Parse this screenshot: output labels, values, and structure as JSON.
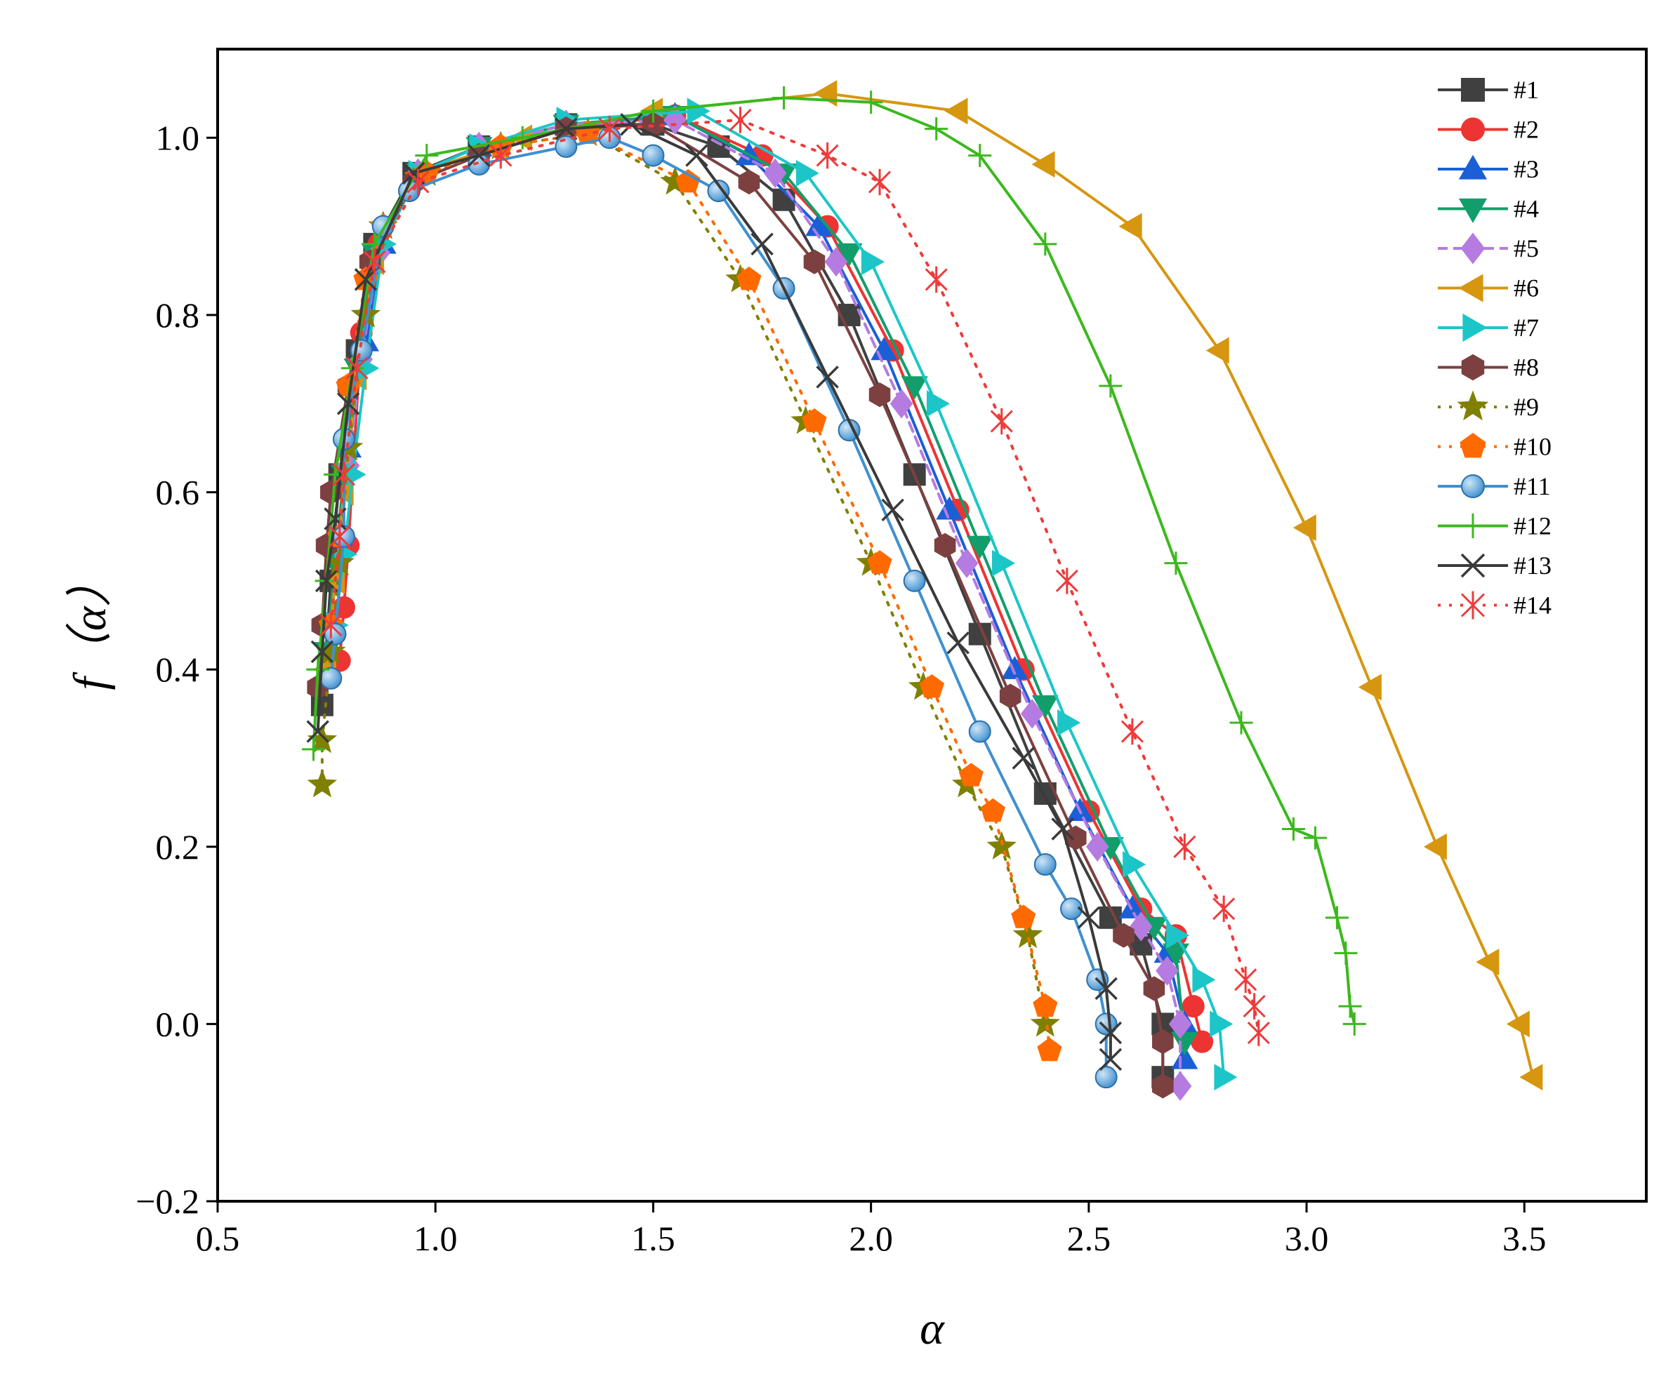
{
  "chart_data": {
    "type": "line",
    "title": "",
    "xlabel": "α",
    "ylabel": "f（α）",
    "xlim": [
      0.5,
      3.78
    ],
    "ylim": [
      -0.2,
      1.1
    ],
    "xticks": [
      0.5,
      1.0,
      1.5,
      2.0,
      2.5,
      3.0,
      3.5
    ],
    "xtick_labels": [
      "0.5",
      "1.0",
      "1.5",
      "2.0",
      "2.5",
      "3.0",
      "3.5"
    ],
    "yticks": [
      -0.2,
      0.0,
      0.2,
      0.4,
      0.6,
      0.8,
      1.0
    ],
    "ytick_labels": [
      "−0.2",
      "0.0",
      "0.2",
      "0.4",
      "0.6",
      "0.8",
      "1.0"
    ],
    "grid": false,
    "legend_position": "top-right",
    "series": [
      {
        "name": "#1",
        "color": "#404040",
        "marker": "square",
        "dash": "solid",
        "points": [
          [
            0.74,
            0.36
          ],
          [
            0.76,
            0.5
          ],
          [
            0.78,
            0.62
          ],
          [
            0.82,
            0.76
          ],
          [
            0.86,
            0.88
          ],
          [
            0.95,
            0.96
          ],
          [
            1.1,
            0.99
          ],
          [
            1.3,
            1.015
          ],
          [
            1.5,
            1.015
          ],
          [
            1.65,
            0.99
          ],
          [
            1.8,
            0.93
          ],
          [
            1.95,
            0.8
          ],
          [
            2.1,
            0.62
          ],
          [
            2.25,
            0.44
          ],
          [
            2.4,
            0.26
          ],
          [
            2.55,
            0.12
          ],
          [
            2.62,
            0.09
          ],
          [
            2.67,
            0.0
          ],
          [
            2.67,
            -0.06
          ]
        ]
      },
      {
        "name": "#2",
        "color": "#ee3333",
        "marker": "circle",
        "dash": "solid",
        "points": [
          [
            0.78,
            0.41
          ],
          [
            0.79,
            0.47
          ],
          [
            0.8,
            0.54
          ],
          [
            0.83,
            0.78
          ],
          [
            0.87,
            0.88
          ],
          [
            0.95,
            0.95
          ],
          [
            1.1,
            0.98
          ],
          [
            1.3,
            1.01
          ],
          [
            1.55,
            1.025
          ],
          [
            1.75,
            0.98
          ],
          [
            1.9,
            0.9
          ],
          [
            2.05,
            0.76
          ],
          [
            2.2,
            0.58
          ],
          [
            2.35,
            0.4
          ],
          [
            2.5,
            0.24
          ],
          [
            2.62,
            0.13
          ],
          [
            2.7,
            0.1
          ],
          [
            2.74,
            0.02
          ],
          [
            2.76,
            -0.02
          ]
        ]
      },
      {
        "name": "#3",
        "color": "#1a5fd6",
        "marker": "triangle-up",
        "dash": "solid",
        "points": [
          [
            0.76,
            0.45
          ],
          [
            0.78,
            0.55
          ],
          [
            0.8,
            0.65
          ],
          [
            0.84,
            0.77
          ],
          [
            0.88,
            0.88
          ],
          [
            0.96,
            0.96
          ],
          [
            1.1,
            0.99
          ],
          [
            1.3,
            1.015
          ],
          [
            1.55,
            1.025
          ],
          [
            1.72,
            0.98
          ],
          [
            1.88,
            0.9
          ],
          [
            2.03,
            0.76
          ],
          [
            2.18,
            0.58
          ],
          [
            2.33,
            0.4
          ],
          [
            2.48,
            0.24
          ],
          [
            2.6,
            0.13
          ],
          [
            2.68,
            0.08
          ],
          [
            2.72,
            0.0
          ],
          [
            2.72,
            -0.04
          ]
        ]
      },
      {
        "name": "#4",
        "color": "#129e6a",
        "marker": "triangle-down",
        "dash": "solid",
        "points": [
          [
            0.75,
            0.42
          ],
          [
            0.77,
            0.52
          ],
          [
            0.79,
            0.62
          ],
          [
            0.82,
            0.74
          ],
          [
            0.86,
            0.87
          ],
          [
            0.96,
            0.96
          ],
          [
            1.1,
            0.99
          ],
          [
            1.3,
            1.015
          ],
          [
            1.55,
            1.025
          ],
          [
            1.8,
            0.96
          ],
          [
            1.95,
            0.87
          ],
          [
            2.1,
            0.72
          ],
          [
            2.25,
            0.54
          ],
          [
            2.4,
            0.36
          ],
          [
            2.55,
            0.2
          ],
          [
            2.65,
            0.11
          ],
          [
            2.7,
            0.08
          ],
          [
            2.72,
            -0.02
          ]
        ]
      },
      {
        "name": "#5",
        "color": "#b57be0",
        "marker": "diamond",
        "dash": "dashed",
        "points": [
          [
            0.76,
            0.45
          ],
          [
            0.78,
            0.55
          ],
          [
            0.8,
            0.63
          ],
          [
            0.83,
            0.75
          ],
          [
            0.87,
            0.87
          ],
          [
            0.96,
            0.96
          ],
          [
            1.1,
            0.99
          ],
          [
            1.3,
            1.015
          ],
          [
            1.55,
            1.02
          ],
          [
            1.78,
            0.96
          ],
          [
            1.92,
            0.86
          ],
          [
            2.07,
            0.7
          ],
          [
            2.22,
            0.52
          ],
          [
            2.37,
            0.35
          ],
          [
            2.52,
            0.2
          ],
          [
            2.62,
            0.11
          ],
          [
            2.68,
            0.06
          ],
          [
            2.71,
            0.0
          ],
          [
            2.71,
            -0.07
          ]
        ]
      },
      {
        "name": "#6",
        "color": "#d6960f",
        "marker": "triangle-left",
        "dash": "solid",
        "points": [
          [
            0.75,
            0.4
          ],
          [
            0.77,
            0.5
          ],
          [
            0.79,
            0.6
          ],
          [
            0.82,
            0.73
          ],
          [
            0.86,
            0.86
          ],
          [
            0.96,
            0.96
          ],
          [
            1.2,
            1.0
          ],
          [
            1.5,
            1.03
          ],
          [
            1.9,
            1.05
          ],
          [
            2.2,
            1.03
          ],
          [
            2.4,
            0.97
          ],
          [
            2.6,
            0.9
          ],
          [
            2.8,
            0.76
          ],
          [
            3.0,
            0.56
          ],
          [
            3.15,
            0.38
          ],
          [
            3.3,
            0.2
          ],
          [
            3.42,
            0.07
          ],
          [
            3.49,
            0.0
          ],
          [
            3.52,
            -0.06
          ]
        ]
      },
      {
        "name": "#7",
        "color": "#1cc6c8",
        "marker": "triangle-right",
        "dash": "solid",
        "points": [
          [
            0.77,
            0.45
          ],
          [
            0.79,
            0.53
          ],
          [
            0.81,
            0.62
          ],
          [
            0.84,
            0.74
          ],
          [
            0.88,
            0.88
          ],
          [
            0.96,
            0.96
          ],
          [
            1.1,
            0.99
          ],
          [
            1.3,
            1.02
          ],
          [
            1.6,
            1.03
          ],
          [
            1.85,
            0.96
          ],
          [
            2.0,
            0.86
          ],
          [
            2.15,
            0.7
          ],
          [
            2.3,
            0.52
          ],
          [
            2.45,
            0.34
          ],
          [
            2.6,
            0.18
          ],
          [
            2.7,
            0.1
          ],
          [
            2.76,
            0.05
          ],
          [
            2.8,
            0.0
          ],
          [
            2.81,
            -0.06
          ]
        ]
      },
      {
        "name": "#8",
        "color": "#7d4040",
        "marker": "hexagon",
        "dash": "solid",
        "points": [
          [
            0.73,
            0.38
          ],
          [
            0.74,
            0.45
          ],
          [
            0.75,
            0.54
          ],
          [
            0.76,
            0.6
          ],
          [
            0.8,
            0.72
          ],
          [
            0.85,
            0.86
          ],
          [
            0.95,
            0.95
          ],
          [
            1.1,
            0.98
          ],
          [
            1.3,
            1.01
          ],
          [
            1.5,
            1.015
          ],
          [
            1.72,
            0.95
          ],
          [
            1.87,
            0.86
          ],
          [
            2.02,
            0.71
          ],
          [
            2.17,
            0.54
          ],
          [
            2.32,
            0.37
          ],
          [
            2.47,
            0.21
          ],
          [
            2.58,
            0.1
          ],
          [
            2.65,
            0.04
          ],
          [
            2.67,
            -0.02
          ],
          [
            2.67,
            -0.07
          ]
        ]
      },
      {
        "name": "#9",
        "color": "#808000",
        "marker": "star",
        "dash": "dotted",
        "points": [
          [
            0.74,
            0.27
          ],
          [
            0.74,
            0.32
          ],
          [
            0.76,
            0.42
          ],
          [
            0.78,
            0.52
          ],
          [
            0.8,
            0.65
          ],
          [
            0.84,
            0.8
          ],
          [
            0.88,
            0.9
          ],
          [
            0.98,
            0.96
          ],
          [
            1.15,
            0.99
          ],
          [
            1.35,
            1.005
          ],
          [
            1.55,
            0.95
          ],
          [
            1.7,
            0.84
          ],
          [
            1.85,
            0.68
          ],
          [
            2.0,
            0.52
          ],
          [
            2.12,
            0.38
          ],
          [
            2.22,
            0.27
          ],
          [
            2.3,
            0.2
          ],
          [
            2.36,
            0.1
          ],
          [
            2.4,
            0.0
          ]
        ]
      },
      {
        "name": "#10",
        "color": "#ff6a00",
        "marker": "pentagon",
        "dash": "dotted",
        "points": [
          [
            0.76,
            0.45
          ],
          [
            0.78,
            0.55
          ],
          [
            0.8,
            0.72
          ],
          [
            0.84,
            0.84
          ],
          [
            0.88,
            0.9
          ],
          [
            0.98,
            0.96
          ],
          [
            1.15,
            0.99
          ],
          [
            1.35,
            1.005
          ],
          [
            1.58,
            0.95
          ],
          [
            1.72,
            0.84
          ],
          [
            1.87,
            0.68
          ],
          [
            2.02,
            0.52
          ],
          [
            2.14,
            0.38
          ],
          [
            2.23,
            0.28
          ],
          [
            2.28,
            0.24
          ],
          [
            2.35,
            0.12
          ],
          [
            2.4,
            0.02
          ],
          [
            2.41,
            -0.03
          ]
        ]
      },
      {
        "name": "#11",
        "color": "#3f90d0",
        "marker": "sphere",
        "dash": "solid",
        "points": [
          [
            0.76,
            0.39
          ],
          [
            0.77,
            0.44
          ],
          [
            0.79,
            0.55
          ],
          [
            0.79,
            0.66
          ],
          [
            0.83,
            0.76
          ],
          [
            0.88,
            0.9
          ],
          [
            0.94,
            0.94
          ],
          [
            1.1,
            0.97
          ],
          [
            1.3,
            0.99
          ],
          [
            1.4,
            1.0
          ],
          [
            1.5,
            0.98
          ],
          [
            1.65,
            0.94
          ],
          [
            1.8,
            0.83
          ],
          [
            1.95,
            0.67
          ],
          [
            2.1,
            0.5
          ],
          [
            2.25,
            0.33
          ],
          [
            2.4,
            0.18
          ],
          [
            2.46,
            0.13
          ],
          [
            2.52,
            0.05
          ],
          [
            2.54,
            0.0
          ],
          [
            2.54,
            -0.06
          ]
        ]
      },
      {
        "name": "#12",
        "color": "#3cb81e",
        "marker": "plus",
        "dash": "solid",
        "points": [
          [
            0.72,
            0.31
          ],
          [
            0.73,
            0.4
          ],
          [
            0.75,
            0.5
          ],
          [
            0.77,
            0.62
          ],
          [
            0.81,
            0.74
          ],
          [
            0.86,
            0.88
          ],
          [
            0.98,
            0.98
          ],
          [
            1.2,
            1.0
          ],
          [
            1.5,
            1.03
          ],
          [
            1.8,
            1.045
          ],
          [
            2.0,
            1.04
          ],
          [
            2.15,
            1.01
          ],
          [
            2.25,
            0.98
          ],
          [
            2.4,
            0.88
          ],
          [
            2.55,
            0.72
          ],
          [
            2.7,
            0.52
          ],
          [
            2.85,
            0.34
          ],
          [
            2.97,
            0.22
          ],
          [
            3.02,
            0.21
          ],
          [
            3.07,
            0.12
          ],
          [
            3.09,
            0.08
          ],
          [
            3.1,
            0.02
          ],
          [
            3.11,
            0.0
          ]
        ]
      },
      {
        "name": "#13",
        "color": "#3a3a3a",
        "marker": "x",
        "dash": "solid",
        "points": [
          [
            0.73,
            0.33
          ],
          [
            0.74,
            0.42
          ],
          [
            0.75,
            0.5
          ],
          [
            0.77,
            0.57
          ],
          [
            0.8,
            0.7
          ],
          [
            0.84,
            0.84
          ],
          [
            0.95,
            0.96
          ],
          [
            1.1,
            0.98
          ],
          [
            1.3,
            1.01
          ],
          [
            1.45,
            1.015
          ],
          [
            1.6,
            0.98
          ],
          [
            1.75,
            0.88
          ],
          [
            1.9,
            0.73
          ],
          [
            2.05,
            0.58
          ],
          [
            2.2,
            0.43
          ],
          [
            2.35,
            0.3
          ],
          [
            2.44,
            0.22
          ],
          [
            2.5,
            0.12
          ],
          [
            2.54,
            0.04
          ],
          [
            2.55,
            -0.01
          ],
          [
            2.55,
            -0.04
          ]
        ]
      },
      {
        "name": "#14",
        "color": "#ee3b3b",
        "marker": "asterisk",
        "dash": "dotted",
        "points": [
          [
            0.76,
            0.45
          ],
          [
            0.78,
            0.55
          ],
          [
            0.79,
            0.62
          ],
          [
            0.82,
            0.74
          ],
          [
            0.86,
            0.86
          ],
          [
            0.96,
            0.95
          ],
          [
            1.15,
            0.98
          ],
          [
            1.4,
            1.01
          ],
          [
            1.7,
            1.02
          ],
          [
            1.9,
            0.98
          ],
          [
            2.02,
            0.95
          ],
          [
            2.15,
            0.84
          ],
          [
            2.3,
            0.68
          ],
          [
            2.45,
            0.5
          ],
          [
            2.6,
            0.33
          ],
          [
            2.72,
            0.2
          ],
          [
            2.81,
            0.13
          ],
          [
            2.86,
            0.05
          ],
          [
            2.88,
            0.02
          ],
          [
            2.89,
            -0.01
          ]
        ]
      }
    ]
  }
}
